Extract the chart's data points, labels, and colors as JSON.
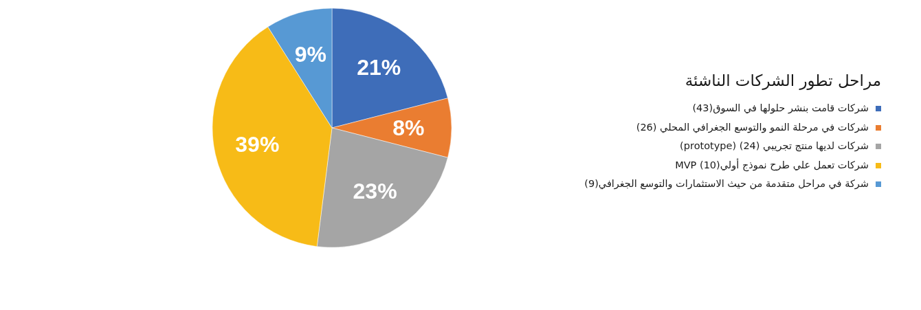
{
  "chart_data": {
    "type": "pie",
    "legend_title": "مراحل تطور الشركات الناشئة",
    "categories": [
      "شركات قامت بنشر حلولها في السوق(43)",
      "شركات في مرحلة النمو والتوسع الجغرافي المحلي (26)",
      "شركات لديها منتج تجريبي (24) (prototype)",
      "شركات تعمل علي طرح نموذج أولي(10) MVP",
      "شركة في مراحل متقدمة من حيث الاستثمارات والتوسع الجغرافي(9)"
    ],
    "values": [
      21,
      8,
      23,
      39,
      9
    ],
    "colors": [
      "#3e6db9",
      "#ea7d31",
      "#a5a5a5",
      "#f7bb17",
      "#5799d4"
    ],
    "value_labels": [
      "21%",
      "8%",
      "23%",
      "39%",
      "9%"
    ],
    "legend": "right"
  }
}
